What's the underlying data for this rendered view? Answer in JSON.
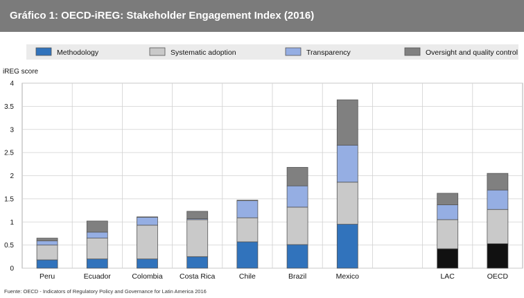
{
  "header": {
    "title": "Gráfico 1: OECD-iREG: Stakeholder Engagement Index (2016)"
  },
  "colors": {
    "methodology": "#3173bc",
    "systematic_adoption": "#c9c9c9",
    "transparency": "#95aee3",
    "oversight": "#808080",
    "aggregate_methodology": "#111111",
    "header_bg": "#7b7b7b",
    "plot_bg": "#ffffff",
    "legend_bg": "#ebebeb"
  },
  "chart_data": {
    "type": "bar",
    "stacked": true,
    "ylabel": "iREG score",
    "ylim": [
      0,
      4
    ],
    "yticks": [
      "0",
      "0.5",
      "1",
      "1.5",
      "2",
      "2.5",
      "3",
      "3.5",
      "4"
    ],
    "grid": true,
    "legend_position": "top",
    "categories": [
      "Peru",
      "Ecuador",
      "Colombia",
      "Costa Rica",
      "Chile",
      "Brazil",
      "Mexico",
      "",
      "LAC",
      "OECD"
    ],
    "series": [
      {
        "name": "Methodology",
        "values": [
          0.18,
          0.2,
          0.2,
          0.25,
          0.57,
          0.51,
          0.95,
          null,
          0.42,
          0.53
        ]
      },
      {
        "name": "Systematic adoption",
        "values": [
          0.32,
          0.45,
          0.73,
          0.8,
          0.52,
          0.81,
          0.91,
          null,
          0.63,
          0.74
        ]
      },
      {
        "name": "Transparency",
        "values": [
          0.09,
          0.13,
          0.17,
          0.02,
          0.37,
          0.46,
          0.8,
          null,
          0.32,
          0.42
        ]
      },
      {
        "name": "Oversight and quality control",
        "values": [
          0.06,
          0.24,
          0.01,
          0.16,
          0.01,
          0.4,
          0.98,
          null,
          0.25,
          0.36
        ]
      }
    ],
    "aggregate_categories": [
      "LAC",
      "OECD"
    ]
  },
  "footer": {
    "source": "Fuente: OECD - Indicators of Regulatory Policy and Governance for Latin America 2016"
  }
}
